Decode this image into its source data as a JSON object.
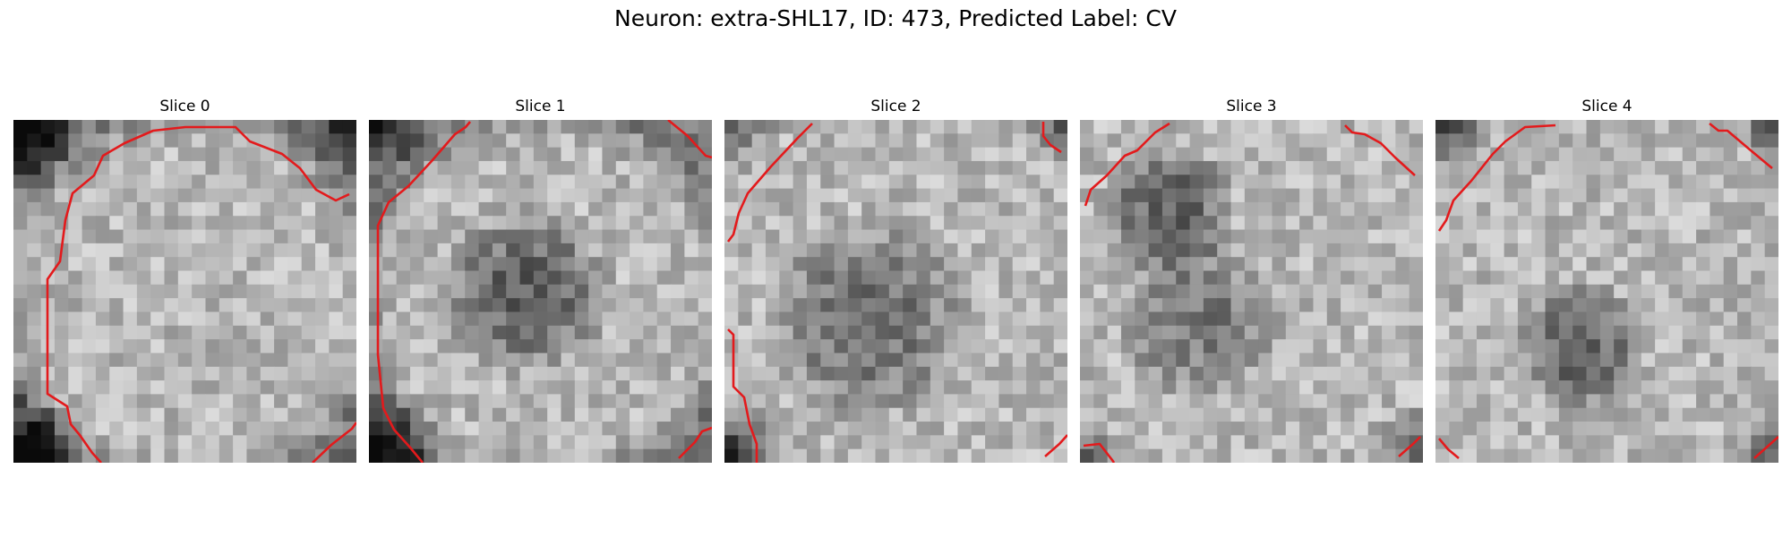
{
  "figure": {
    "title": "Neuron: extra-SHL17, ID: 473, Predicted Label: CV"
  },
  "colors": {
    "contour": "#e31a1c",
    "background": "#ffffff"
  },
  "panels": [
    {
      "title": "Slice 0"
    },
    {
      "title": "Slice 1"
    },
    {
      "title": "Slice 2"
    },
    {
      "title": "Slice 3"
    },
    {
      "title": "Slice 4"
    }
  ]
}
